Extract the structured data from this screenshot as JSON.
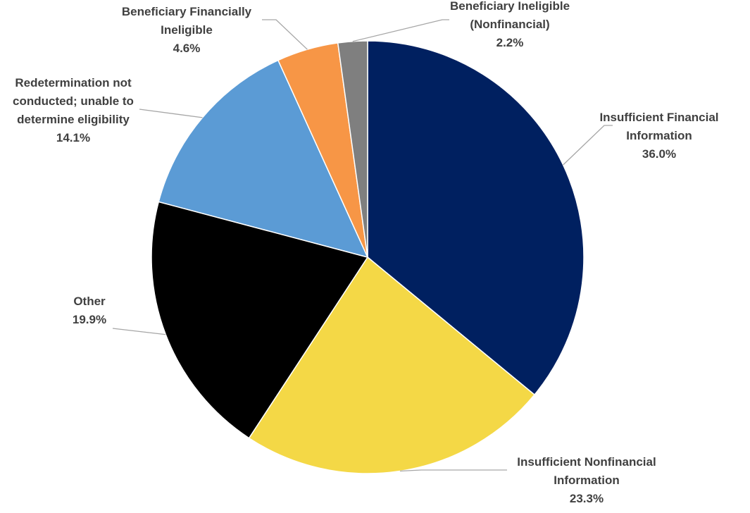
{
  "chart_data": {
    "type": "pie",
    "title": "",
    "slices": [
      {
        "label_lines": [
          "Insufficient Financial",
          "Information"
        ],
        "value": 36.0,
        "value_text": "36.0%",
        "color": "#002060"
      },
      {
        "label_lines": [
          "Insufficient Nonfinancial",
          "Information"
        ],
        "value": 23.3,
        "value_text": "23.3%",
        "color": "#f4d846"
      },
      {
        "label_lines": [
          "Other"
        ],
        "value": 19.9,
        "value_text": "19.9%",
        "color": "#000000"
      },
      {
        "label_lines": [
          "Redetermination not",
          "conducted; unable to",
          "determine eligibility"
        ],
        "value": 14.1,
        "value_text": "14.1%",
        "color": "#5b9bd5"
      },
      {
        "label_lines": [
          "Beneficiary Financially",
          "Ineligible"
        ],
        "value": 4.6,
        "value_text": "4.6%",
        "color": "#f79646"
      },
      {
        "label_lines": [
          "Beneficiary Ineligible",
          "(Nonfinancial)"
        ],
        "value": 2.2,
        "value_text": "2.2%",
        "color": "#7f7f7f"
      }
    ],
    "start_angle": "12 o'clock",
    "direction": "clockwise",
    "legend": "none (data labels with leader lines)"
  }
}
